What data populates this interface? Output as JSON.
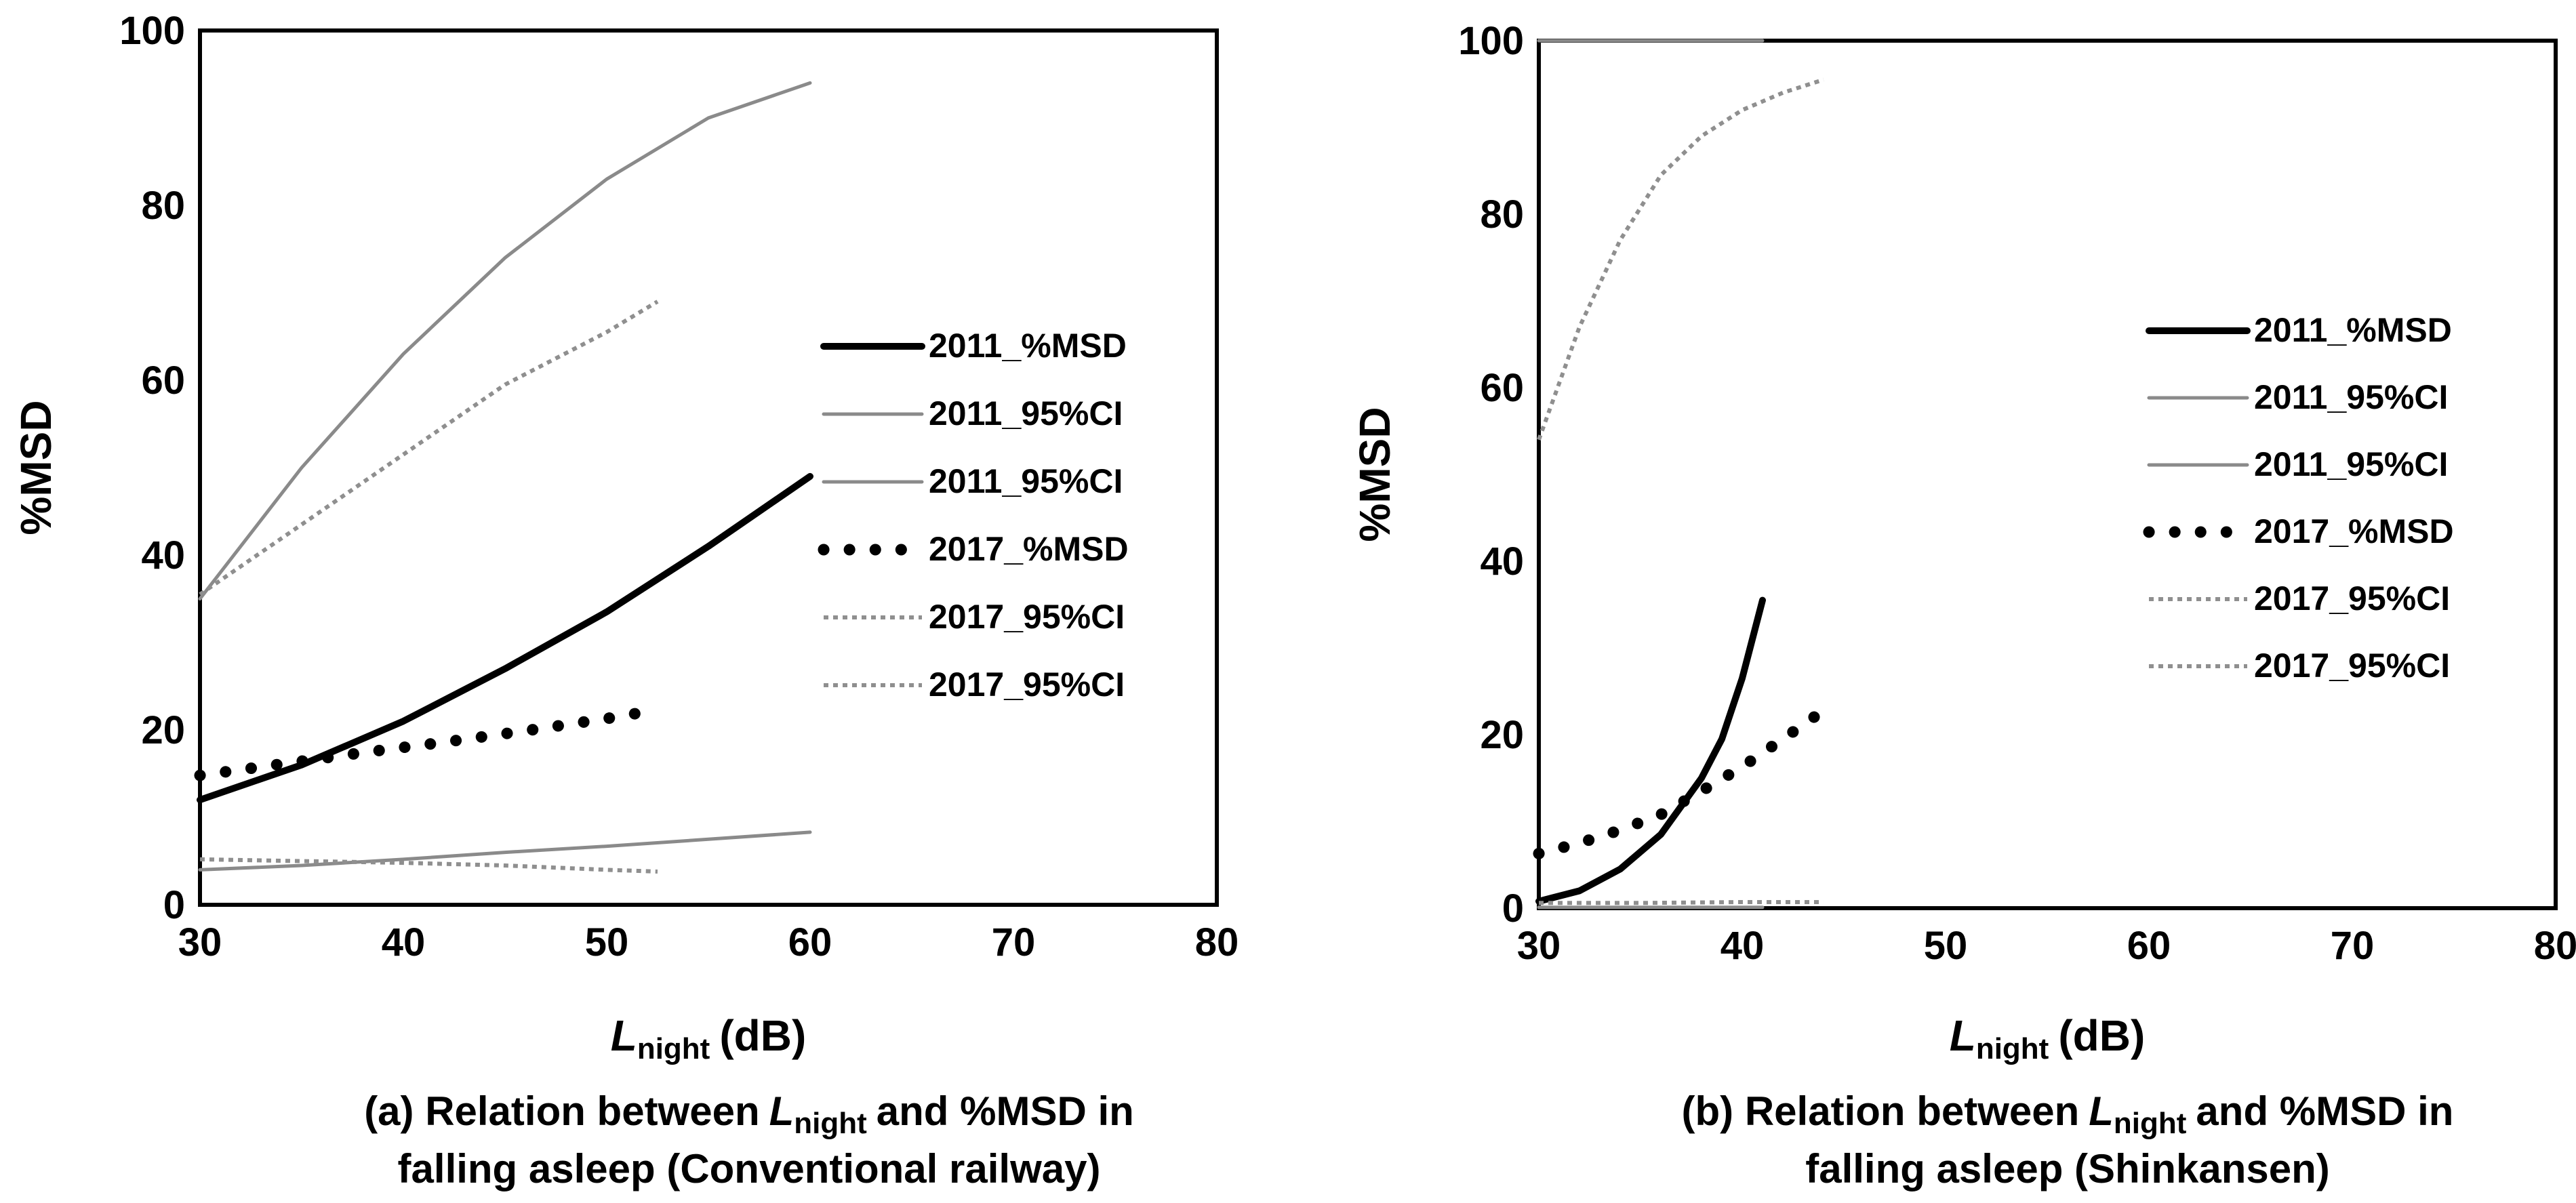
{
  "chart_data": [
    {
      "type": "line",
      "panel_label": "(a) Relation between",
      "caption_line1_sym": "L",
      "caption_line1_sub": "night",
      "caption_line1_rest": "and %MSD in",
      "caption_line2": "falling asleep (Conventional railway)",
      "xlabel_sym": "L",
      "xlabel_sub": "night",
      "xlabel_unit": "(dB)",
      "ylabel": "%MSD",
      "xlim": [
        30,
        80
      ],
      "ylim": [
        0,
        100
      ],
      "xticks": [
        "30",
        "40",
        "50",
        "60",
        "70",
        "80"
      ],
      "yticks": [
        "0",
        "20",
        "40",
        "60",
        "80",
        "100"
      ],
      "grid": false,
      "legend_position": "right",
      "series": [
        {
          "name": "2011_%MSD",
          "style": "solid-black",
          "x": [
            30,
            35,
            40,
            45,
            50,
            55,
            60
          ],
          "y": [
            12,
            16,
            21,
            27,
            33.5,
            41,
            49
          ]
        },
        {
          "name": "2011_95%CI",
          "style": "solid-gray",
          "x": [
            30,
            35,
            40,
            45,
            50,
            55,
            60
          ],
          "y": [
            35,
            50,
            63,
            74,
            83,
            90,
            94
          ]
        },
        {
          "name": "2011_95%CI",
          "style": "solid-gray",
          "x": [
            30,
            35,
            40,
            45,
            50,
            55,
            60
          ],
          "y": [
            4,
            4.5,
            5.2,
            6,
            6.7,
            7.5,
            8.3
          ]
        },
        {
          "name": "2017_%MSD",
          "style": "dotted-black",
          "x": [
            30,
            34,
            38,
            42,
            46,
            50,
            52.5
          ],
          "y": [
            14.8,
            16.1,
            17.4,
            18.6,
            19.9,
            21.3,
            22.3
          ]
        },
        {
          "name": "2017_95%CI",
          "style": "dotted-gray",
          "x": [
            30,
            35,
            40,
            45,
            50,
            52.5
          ],
          "y": [
            35.5,
            43.5,
            51.5,
            59.5,
            65.5,
            69
          ]
        },
        {
          "name": "2017_95%CI",
          "style": "dotted-gray",
          "x": [
            30,
            35,
            40,
            45,
            50,
            52.5
          ],
          "y": [
            5.2,
            5,
            4.8,
            4.5,
            4,
            3.8
          ]
        }
      ]
    },
    {
      "type": "line",
      "panel_label": "(b) Relation between",
      "caption_line1_sym": "L",
      "caption_line1_sub": "night",
      "caption_line1_rest": "and %MSD in",
      "caption_line2": "falling asleep (Shinkansen)",
      "xlabel_sym": "L",
      "xlabel_sub": "night",
      "xlabel_unit": "(dB)",
      "ylabel": "%MSD",
      "xlim": [
        30,
        80
      ],
      "ylim": [
        0,
        100
      ],
      "xticks": [
        "30",
        "40",
        "50",
        "60",
        "70",
        "80"
      ],
      "yticks": [
        "0",
        "20",
        "40",
        "60",
        "80",
        "100"
      ],
      "grid": false,
      "legend_position": "right",
      "series": [
        {
          "name": "2011_%MSD",
          "style": "solid-black",
          "x": [
            30,
            32,
            34,
            36,
            38,
            39,
            40,
            41
          ],
          "y": [
            0.8,
            2,
            4.5,
            8.5,
            15,
            19.5,
            26.5,
            35.5
          ]
        },
        {
          "name": "2011_95%CI",
          "style": "solid-gray",
          "x": [
            30,
            41
          ],
          "y": [
            100,
            100
          ]
        },
        {
          "name": "2011_95%CI",
          "style": "solid-gray",
          "x": [
            30,
            41
          ],
          "y": [
            0.1,
            0.1
          ]
        },
        {
          "name": "2017_%MSD",
          "style": "dotted-black",
          "x": [
            30,
            32,
            34,
            36,
            38,
            40,
            42,
            44
          ],
          "y": [
            6.3,
            7.5,
            9,
            10.8,
            13.5,
            16.3,
            19.5,
            22.8
          ]
        },
        {
          "name": "2017_95%CI",
          "style": "dotted-gray",
          "x": [
            30,
            32,
            34,
            36,
            38,
            40,
            42,
            44
          ],
          "y": [
            54,
            67,
            77,
            84.5,
            89,
            92,
            94,
            95.5
          ]
        },
        {
          "name": "2017_95%CI",
          "style": "dotted-gray",
          "x": [
            30,
            35,
            40,
            44
          ],
          "y": [
            0.6,
            0.6,
            0.7,
            0.7
          ]
        }
      ]
    }
  ],
  "styles": {
    "solid-black": {
      "color": "#000000",
      "width": 10,
      "dash": ""
    },
    "solid-gray": {
      "color": "#8a8a8a",
      "width": 5,
      "dash": ""
    },
    "dotted-black": {
      "color": "#000000",
      "width": 17,
      "dash": "0.1 38"
    },
    "dotted-gray": {
      "color": "#8f8f8f",
      "width": 6,
      "dash": "7 7"
    }
  }
}
